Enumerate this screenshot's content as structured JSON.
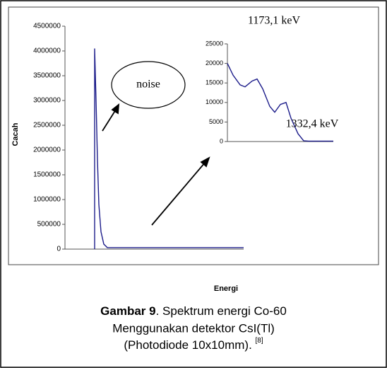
{
  "chart_data": [
    {
      "type": "line",
      "ylabel": "Cacah",
      "xlabel": "Energi",
      "xlim": [
        0,
        253
      ],
      "ylim": [
        0,
        4500000
      ],
      "yticks": [
        0,
        500000,
        1000000,
        1500000,
        2000000,
        2500000,
        3000000,
        3500000,
        4000000,
        4500000
      ],
      "annotations": [
        "noise"
      ],
      "series": [
        {
          "name": "Co-60",
          "color": "#1c1c8a",
          "x": [
            42,
            42,
            44,
            46,
            48,
            51,
            55,
            60,
            253
          ],
          "values": [
            0,
            4050000,
            3000000,
            1800000,
            900000,
            350000,
            100000,
            30000,
            30000
          ]
        }
      ]
    },
    {
      "type": "line",
      "xlim": [
        0,
        150
      ],
      "ylim": [
        0,
        25000
      ],
      "yticks": [
        0,
        5000,
        10000,
        15000,
        20000,
        25000
      ],
      "annotations": [
        "1173,1 keV",
        "1332,4 keV"
      ],
      "series": [
        {
          "name": "inset",
          "color": "#1c1c8a",
          "x": [
            0,
            8,
            18,
            25,
            35,
            42,
            50,
            60,
            67,
            75,
            83,
            90,
            100,
            108,
            115,
            150
          ],
          "values": [
            20000,
            17000,
            14500,
            14000,
            15500,
            16000,
            13500,
            9000,
            7500,
            9500,
            10000,
            6000,
            2000,
            200,
            100,
            100
          ]
        }
      ]
    }
  ],
  "caption": {
    "label": "Gambar 9",
    "lines": [
      ". Spektrum energi Co-60",
      "Menggunakan detektor CsI(Tl)",
      "(Photodiode 10x10mm). "
    ],
    "ref": "[8]"
  }
}
